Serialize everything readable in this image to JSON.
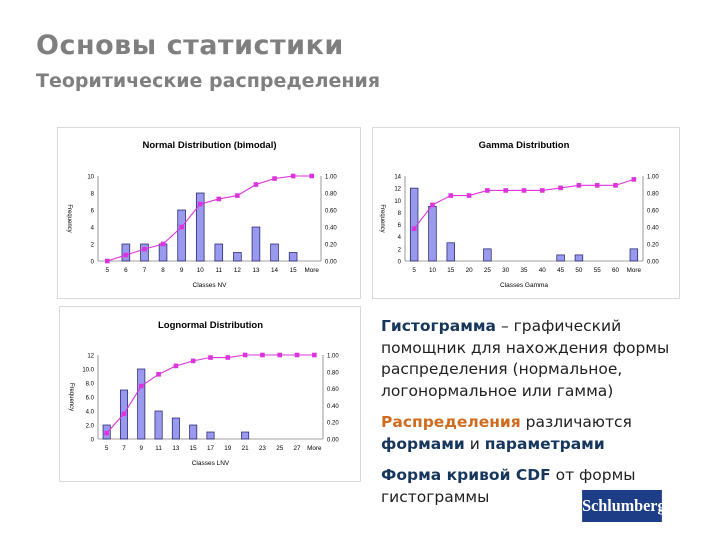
{
  "slide": {
    "title": "Основы статистики",
    "subtitle": "Теоритические распределения"
  },
  "text": {
    "p1_bold": "Гистограмма",
    "p1_rest": " – графический помощник для нахождения формы распределения (нормальное, логонормальное или гамма)",
    "p2_bold": "Распределения",
    "p2_mid": " различаются ",
    "p2_bold2": "формами",
    "p2_and": " и ",
    "p2_bold3": "параметрами",
    "p3_bold": "Форма кривой CDF",
    "p3_rest": " от формы гистограммы"
  },
  "logo": {
    "text": "Schlumberger"
  },
  "colors": {
    "bar": "#9999ee",
    "bar_stroke": "#1a1a66",
    "line": "#dd33dd",
    "title": "#7f7f7f",
    "logo_bg": "#1d3e86"
  },
  "chart_data": [
    {
      "type": "bar",
      "title": "Normal Distribution (bimodal)",
      "xlabel": "Classes NV",
      "ylabel": "Frequency",
      "categories": [
        "5",
        "6",
        "7",
        "8",
        "9",
        "10",
        "11",
        "12",
        "13",
        "14",
        "15",
        "More"
      ],
      "series": [
        {
          "kind": "bar",
          "values": [
            0,
            2,
            2,
            2,
            6,
            8,
            2,
            1,
            4,
            2,
            1,
            0
          ]
        },
        {
          "kind": "line",
          "axis": "right",
          "values": [
            0.0,
            0.07,
            0.14,
            0.2,
            0.4,
            0.67,
            0.73,
            0.77,
            0.9,
            0.97,
            1.0,
            1.0
          ]
        }
      ],
      "ylim": [
        0,
        10
      ],
      "yticks": [
        "0",
        "2",
        "4",
        "6",
        "8",
        "10"
      ],
      "y2lim": [
        0,
        1
      ],
      "y2ticks": [
        "0.00",
        "0.20",
        "0.40",
        "0.60",
        "0.80",
        "1.00"
      ]
    },
    {
      "type": "bar",
      "title": "Gamma Distribution",
      "xlabel": "Classes Gamma",
      "ylabel": "Frequency",
      "categories": [
        "5",
        "10",
        "15",
        "20",
        "25",
        "30",
        "35",
        "40",
        "45",
        "50",
        "55",
        "60",
        "More"
      ],
      "series": [
        {
          "kind": "bar",
          "values": [
            12,
            9,
            3,
            0,
            2,
            0,
            0,
            0,
            1,
            1,
            0,
            0,
            2
          ]
        },
        {
          "kind": "line",
          "axis": "right",
          "values": [
            0.38,
            0.66,
            0.77,
            0.77,
            0.83,
            0.83,
            0.83,
            0.83,
            0.86,
            0.89,
            0.89,
            0.89,
            0.96
          ]
        }
      ],
      "ylim": [
        0,
        14
      ],
      "yticks": [
        "0",
        "2",
        "4",
        "6",
        "8",
        "10",
        "12",
        "14"
      ],
      "y2lim": [
        0,
        1
      ],
      "y2ticks": [
        "0.00",
        "0.20",
        "0.40",
        "0.60",
        "0.80",
        "1.00"
      ]
    },
    {
      "type": "bar",
      "title": "Lognormal Distribution",
      "xlabel": "Classes LNV",
      "ylabel": "Frequency",
      "categories": [
        "5",
        "7",
        "9",
        "11",
        "13",
        "15",
        "17",
        "19",
        "21",
        "23",
        "25",
        "27",
        "More"
      ],
      "series": [
        {
          "kind": "bar",
          "values": [
            2,
            7,
            10,
            4,
            3,
            2,
            1,
            0,
            1,
            0,
            0,
            0,
            0
          ]
        },
        {
          "kind": "line",
          "axis": "right",
          "values": [
            0.07,
            0.3,
            0.63,
            0.77,
            0.87,
            0.93,
            0.97,
            0.97,
            1.0,
            1.0,
            1.0,
            1.0,
            1.0
          ]
        }
      ],
      "ylim": [
        0,
        12
      ],
      "yticks": [
        "0",
        "2.0",
        "4.0",
        "6.0",
        "8.0",
        "10.0",
        "12"
      ],
      "y2lim": [
        0,
        1
      ],
      "y2ticks": [
        "0.00",
        "0.20",
        "0.40",
        "0.60",
        "0.80",
        "1.00"
      ]
    }
  ]
}
